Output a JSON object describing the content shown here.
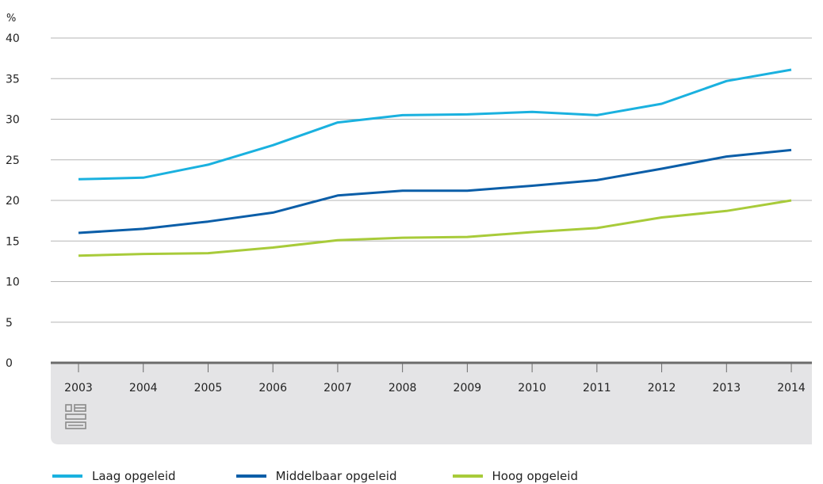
{
  "chart_data": {
    "type": "line",
    "ylabel": "%",
    "ylim": [
      0,
      40
    ],
    "yticks": [
      0,
      5,
      10,
      15,
      20,
      25,
      30,
      35,
      40
    ],
    "categories": [
      "2003",
      "2004",
      "2005",
      "2006",
      "2007",
      "2008",
      "2009",
      "2010",
      "2011",
      "2012",
      "2013",
      "2014"
    ],
    "series": [
      {
        "name": "Laag opgeleid",
        "color": "#1AB1DF",
        "values": [
          22.6,
          22.8,
          24.4,
          26.8,
          29.6,
          30.5,
          30.6,
          30.9,
          30.5,
          31.9,
          34.7,
          36.1
        ]
      },
      {
        "name": "Middelbaar opgeleid",
        "color": "#0B5EA8",
        "values": [
          16.0,
          16.5,
          17.4,
          18.5,
          20.6,
          21.2,
          21.2,
          21.8,
          22.5,
          23.9,
          25.4,
          26.2
        ]
      },
      {
        "name": "Hoog opgeleid",
        "color": "#A8CB3A",
        "values": [
          13.2,
          13.4,
          13.5,
          14.2,
          15.1,
          15.4,
          15.5,
          16.1,
          16.6,
          17.9,
          18.7,
          20.0
        ]
      }
    ],
    "grid": true,
    "legend_position": "bottom-left"
  },
  "logo_icon": "cbs-logo-icon"
}
